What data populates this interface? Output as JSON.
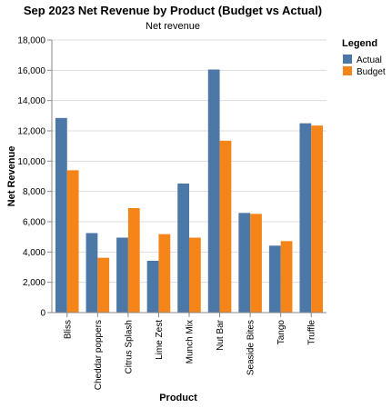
{
  "chart_data": {
    "type": "bar",
    "title": "Sep 2023 Net Revenue by Product (Budget vs Actual)",
    "subtitle": "Net revenue",
    "xlabel": "Product",
    "ylabel": "Net Revenue",
    "ylim": [
      0,
      18000
    ],
    "yticks": [
      0,
      2000,
      4000,
      6000,
      8000,
      10000,
      12000,
      14000,
      16000,
      18000
    ],
    "ytick_labels": [
      "0",
      "2,000",
      "4,000",
      "6,000",
      "8,000",
      "10,000",
      "12,000",
      "14,000",
      "16,000",
      "18,000"
    ],
    "grid": true,
    "categories": [
      "Bliss",
      "Cheddar poppers",
      "Citrus Splash",
      "Lime Zest",
      "Munch Mix",
      "Nut Bar",
      "Seaside Bites",
      "Tango",
      "Truffle"
    ],
    "legend": {
      "title": "Legend",
      "position": "top-right"
    },
    "series": [
      {
        "name": "Actual",
        "color": "#4c78a8",
        "values": [
          12850,
          5250,
          4950,
          3420,
          8520,
          16050,
          6580,
          4420,
          12500
        ]
      },
      {
        "name": "Budget",
        "color": "#f58518",
        "values": [
          9400,
          3620,
          6900,
          5180,
          4950,
          11350,
          6520,
          4720,
          12350
        ]
      }
    ]
  }
}
